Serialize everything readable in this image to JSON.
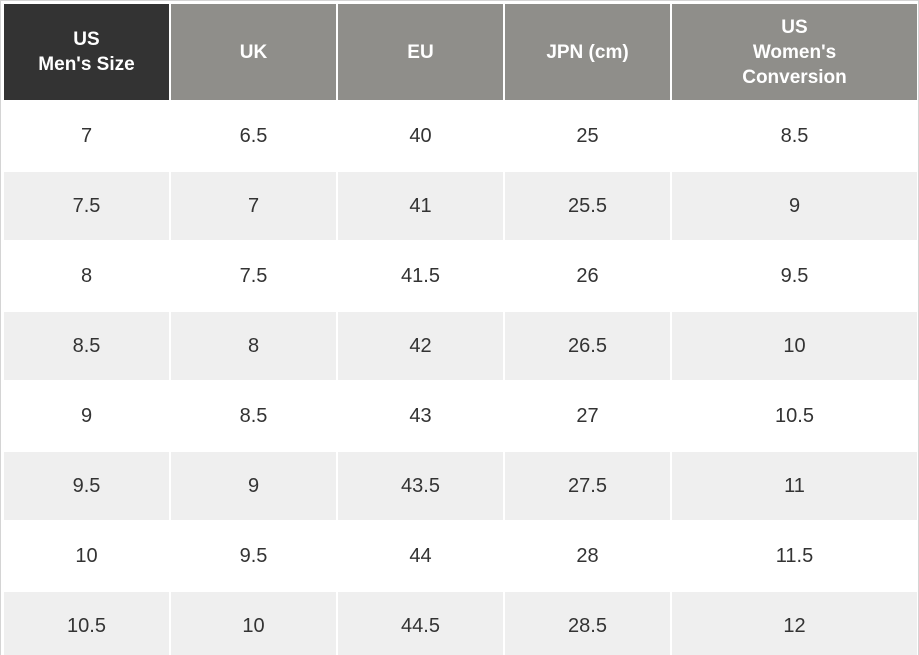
{
  "table": {
    "header": [
      [
        "US",
        "Men's Size"
      ],
      [
        "UK"
      ],
      [
        "EU"
      ],
      [
        "JPN (cm)"
      ],
      [
        "US",
        "Women's",
        "Conversion"
      ]
    ],
    "rows": [
      [
        7,
        6.5,
        40,
        25,
        8.5
      ],
      [
        7.5,
        7,
        41,
        25.5,
        9
      ],
      [
        8,
        7.5,
        41.5,
        26,
        9.5
      ],
      [
        8.5,
        8,
        42,
        26.5,
        10
      ],
      [
        9,
        8.5,
        43,
        27,
        10.5
      ],
      [
        9.5,
        9,
        43.5,
        27.5,
        11
      ],
      [
        10,
        9.5,
        44,
        28,
        11.5
      ],
      [
        10.5,
        10,
        44.5,
        28.5,
        12
      ]
    ]
  }
}
